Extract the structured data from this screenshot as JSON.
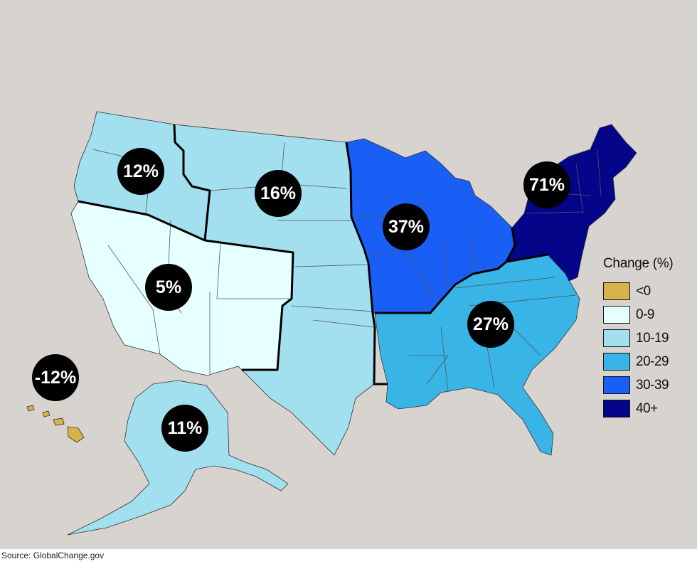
{
  "colors": {
    "below_0": "#d8b24a",
    "range_0_9": "#e6ffff",
    "range_10_19": "#a2dfef",
    "range_20_29": "#38b4e6",
    "range_30_39": "#1a5ff5",
    "range_40_plus": "#05058a"
  },
  "legend": {
    "title": "Change (%)",
    "items": [
      {
        "label": "<0",
        "color": "#d8b24a"
      },
      {
        "label": "0-9",
        "color": "#e6ffff"
      },
      {
        "label": "10-19",
        "color": "#a2dfef"
      },
      {
        "label": "20-29",
        "color": "#38b4e6"
      },
      {
        "label": "30-39",
        "color": "#1a5ff5"
      },
      {
        "label": "40+",
        "color": "#05058a"
      }
    ]
  },
  "regions": [
    {
      "id": "northwest",
      "value": "12%",
      "color": "#a2dfef"
    },
    {
      "id": "great-plains",
      "value": "16%",
      "color": "#a2dfef"
    },
    {
      "id": "southwest",
      "value": "5%",
      "color": "#e6ffff"
    },
    {
      "id": "midwest",
      "value": "37%",
      "color": "#1a5ff5"
    },
    {
      "id": "southeast",
      "value": "27%",
      "color": "#38b4e6"
    },
    {
      "id": "northeast",
      "value": "71%",
      "color": "#05058a"
    },
    {
      "id": "alaska",
      "value": "11%",
      "color": "#a2dfef"
    },
    {
      "id": "hawaii",
      "value": "-12%",
      "color": "#d8b24a"
    }
  ],
  "source": "Source: GlobalChange.gov"
}
